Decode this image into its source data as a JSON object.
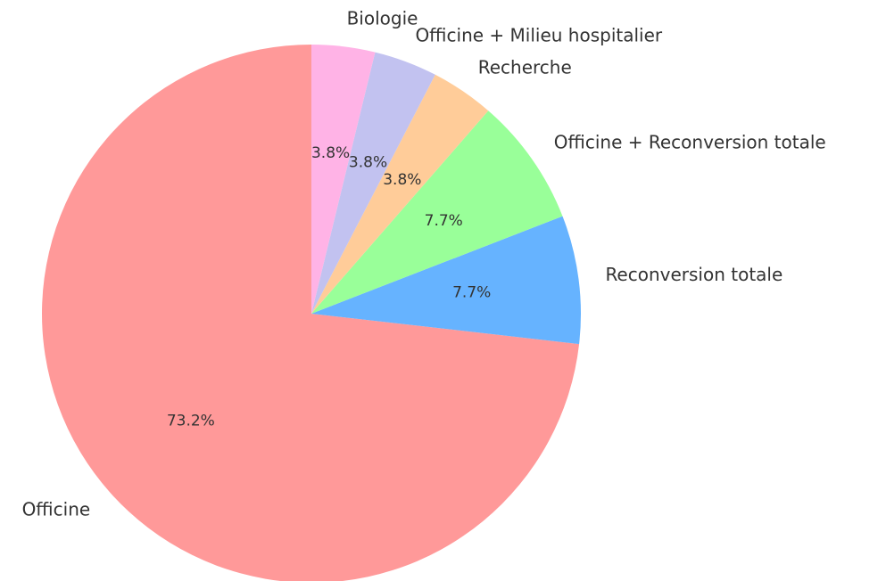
{
  "chart_data": {
    "type": "pie",
    "categories": [
      "Officine",
      "Reconversion totale",
      "Officine + Reconversion totale",
      "Recherche",
      "Officine + Milieu hospitalier",
      "Biologie"
    ],
    "values": [
      73.2,
      7.7,
      7.7,
      3.8,
      3.8,
      3.8
    ],
    "value_labels": [
      "73.2%",
      "7.7%",
      "7.7%",
      "3.8%",
      "3.8%",
      "3.8%"
    ],
    "colors": [
      "#ff9999",
      "#66b3ff",
      "#99ff99",
      "#ffcc99",
      "#c2c2f0",
      "#ffb3e6"
    ]
  }
}
